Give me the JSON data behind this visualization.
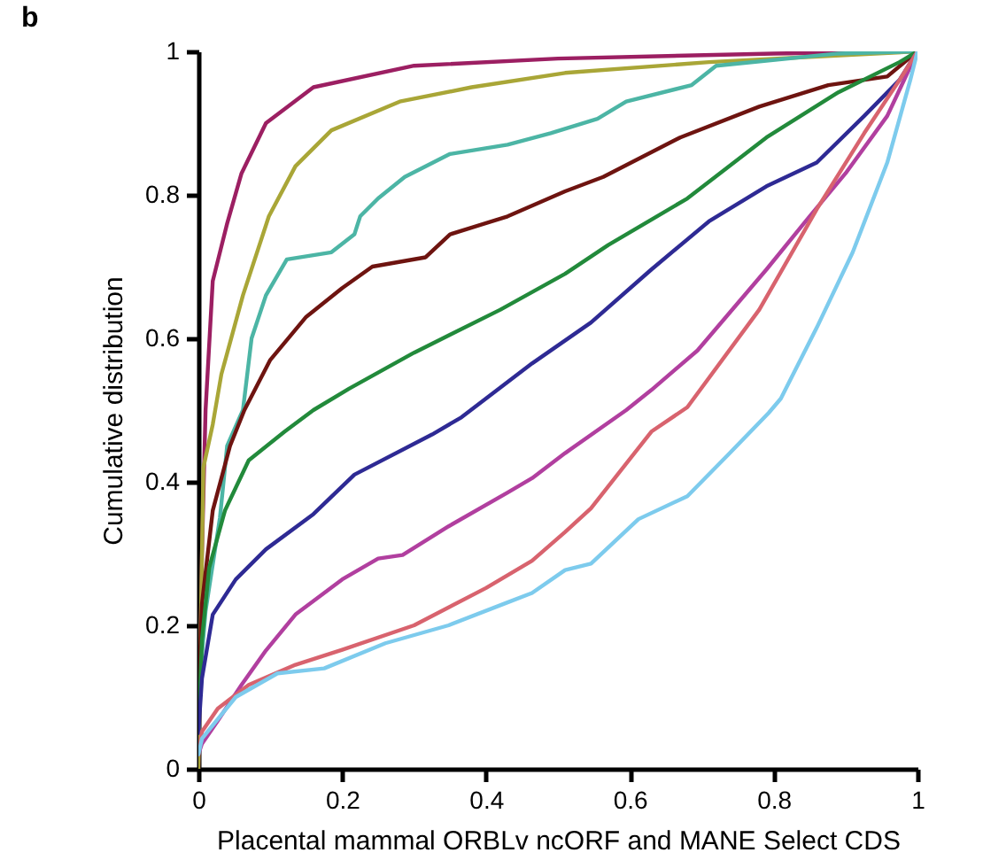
{
  "chart_data": {
    "type": "line",
    "title": "b",
    "xlabel": "Placental mammal ORBLv ncORF and MANE Select CDS",
    "ylabel": "Cumulative distribution",
    "xlim": [
      0,
      1
    ],
    "ylim": [
      0,
      1
    ],
    "xticks": [
      0,
      0.2,
      0.4,
      0.6,
      0.8,
      1
    ],
    "yticks": [
      0,
      0.2,
      0.4,
      0.6,
      0.8,
      1
    ],
    "grid": false,
    "legend": false,
    "series": [
      {
        "color": "#9c1f62",
        "x": [
          0,
          0.005,
          0.01,
          0.02,
          0.04,
          0.06,
          0.094,
          0.16,
          0.3,
          0.5,
          0.8,
          1
        ],
        "values": [
          0,
          0.3,
          0.5,
          0.68,
          0.76,
          0.83,
          0.9,
          0.95,
          0.98,
          0.99,
          0.997,
          1
        ]
      },
      {
        "color": "#a9a637",
        "x": [
          0,
          0.005,
          0.007,
          0.02,
          0.032,
          0.062,
          0.098,
          0.135,
          0.185,
          0.28,
          0.38,
          0.51,
          0.71,
          1
        ],
        "values": [
          0,
          0.3,
          0.42,
          0.48,
          0.55,
          0.66,
          0.77,
          0.84,
          0.89,
          0.93,
          0.95,
          0.97,
          0.985,
          1
        ]
      },
      {
        "color": "#4cb5a5",
        "x": [
          0,
          0.01,
          0.03,
          0.04,
          0.062,
          0.074,
          0.094,
          0.123,
          0.185,
          0.217,
          0.225,
          0.25,
          0.287,
          0.35,
          0.43,
          0.49,
          0.555,
          0.595,
          0.686,
          0.72,
          0.89,
          1
        ],
        "values": [
          0.1,
          0.22,
          0.35,
          0.45,
          0.5,
          0.6,
          0.66,
          0.71,
          0.72,
          0.745,
          0.77,
          0.795,
          0.825,
          0.857,
          0.87,
          0.886,
          0.906,
          0.93,
          0.953,
          0.98,
          0.997,
          1
        ]
      },
      {
        "color": "#6e1410",
        "x": [
          0,
          0.005,
          0.02,
          0.044,
          0.064,
          0.1,
          0.15,
          0.2,
          0.242,
          0.316,
          0.35,
          0.43,
          0.51,
          0.563,
          0.67,
          0.78,
          0.876,
          0.958,
          1
        ],
        "values": [
          0.1,
          0.23,
          0.36,
          0.45,
          0.5,
          0.57,
          0.63,
          0.67,
          0.7,
          0.713,
          0.745,
          0.77,
          0.805,
          0.825,
          0.88,
          0.923,
          0.953,
          0.965,
          1
        ]
      },
      {
        "color": "#228a3b",
        "x": [
          0,
          0.005,
          0.015,
          0.037,
          0.07,
          0.12,
          0.16,
          0.21,
          0.3,
          0.42,
          0.51,
          0.57,
          0.68,
          0.79,
          0.89,
          0.975,
          1
        ],
        "values": [
          0.05,
          0.18,
          0.28,
          0.36,
          0.43,
          0.47,
          0.5,
          0.53,
          0.58,
          0.64,
          0.69,
          0.73,
          0.795,
          0.88,
          0.943,
          0.985,
          1
        ]
      },
      {
        "color": "#2e2a94",
        "x": [
          0,
          0.005,
          0.02,
          0.052,
          0.094,
          0.16,
          0.217,
          0.325,
          0.366,
          0.464,
          0.546,
          0.63,
          0.71,
          0.79,
          0.86,
          0.926,
          0.975,
          1
        ],
        "values": [
          0.05,
          0.126,
          0.215,
          0.264,
          0.306,
          0.355,
          0.41,
          0.466,
          0.49,
          0.565,
          0.622,
          0.696,
          0.763,
          0.812,
          0.845,
          0.91,
          0.96,
          1
        ]
      },
      {
        "color": "#b13f9f",
        "x": [
          0,
          0.005,
          0.027,
          0.06,
          0.094,
          0.135,
          0.2,
          0.25,
          0.284,
          0.348,
          0.43,
          0.464,
          0.51,
          0.595,
          0.63,
          0.694,
          0.79,
          0.85,
          0.9,
          0.958,
          1
        ],
        "values": [
          0.02,
          0.035,
          0.067,
          0.117,
          0.165,
          0.215,
          0.264,
          0.293,
          0.298,
          0.338,
          0.385,
          0.405,
          0.44,
          0.5,
          0.528,
          0.583,
          0.696,
          0.77,
          0.83,
          0.91,
          1
        ]
      },
      {
        "color": "#d8636e",
        "x": [
          0,
          0.005,
          0.027,
          0.07,
          0.135,
          0.2,
          0.3,
          0.4,
          0.464,
          0.51,
          0.546,
          0.63,
          0.68,
          0.78,
          0.86,
          0.926,
          0.975,
          1
        ],
        "values": [
          0.02,
          0.052,
          0.084,
          0.117,
          0.145,
          0.166,
          0.2,
          0.252,
          0.29,
          0.33,
          0.363,
          0.47,
          0.504,
          0.64,
          0.78,
          0.886,
          0.96,
          1
        ]
      },
      {
        "color": "#7dcbed",
        "x": [
          0,
          0.005,
          0.052,
          0.11,
          0.175,
          0.26,
          0.348,
          0.43,
          0.464,
          0.51,
          0.546,
          0.612,
          0.68,
          0.736,
          0.793,
          0.81,
          0.86,
          0.91,
          0.958,
          0.99,
          1
        ],
        "values": [
          0.02,
          0.042,
          0.1,
          0.133,
          0.14,
          0.175,
          0.2,
          0.232,
          0.245,
          0.277,
          0.286,
          0.348,
          0.38,
          0.437,
          0.496,
          0.516,
          0.615,
          0.72,
          0.845,
          0.96,
          1
        ]
      }
    ]
  }
}
